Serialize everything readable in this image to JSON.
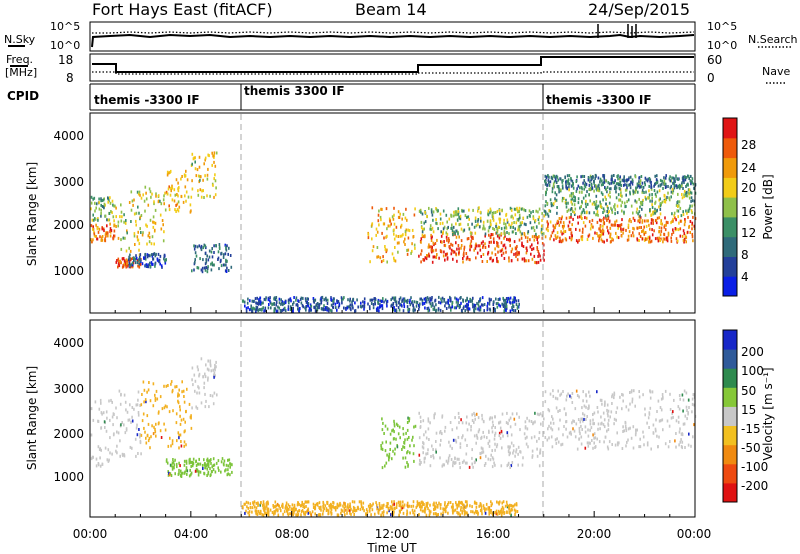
{
  "header": {
    "station": "Fort Hays East (fitACF)",
    "beam": "Beam 14",
    "date": "24/Sep/2015"
  },
  "time_axis": {
    "label": "Time UT",
    "ticks": [
      "00:00",
      "04:00",
      "08:00",
      "12:00",
      "16:00",
      "20:00",
      "00:00"
    ],
    "range_hours": [
      0,
      24
    ]
  },
  "noise_panel": {
    "left_label": "N.Sky",
    "right_label": "N.Search",
    "left_ticks": [
      "10^5",
      "10^0"
    ],
    "right_ticks": [
      "10^5",
      "10^0"
    ]
  },
  "freq_panel": {
    "left_label_1": "Freq.",
    "left_label_2": "[MHz]",
    "left_ticks": [
      "18",
      "8"
    ],
    "right_label": "Nave",
    "right_ticks": [
      "60",
      "0"
    ]
  },
  "cpid": {
    "label": "CPID",
    "segments": [
      {
        "start_h": 0,
        "end_h": 6,
        "text": "themis -3300 IF"
      },
      {
        "start_h": 6,
        "end_h": 18,
        "text": "themis 3300 IF"
      },
      {
        "start_h": 18,
        "end_h": 24,
        "text": "themis -3300 IF"
      }
    ]
  },
  "chart_data": [
    {
      "type": "heatmap",
      "title": "Power",
      "xlabel": "Time UT",
      "ylabel": "Slant Range [km]",
      "xlim": [
        0,
        24
      ],
      "ylim": [
        200,
        4500
      ],
      "yticks": [
        "1000",
        "2000",
        "3000",
        "4000"
      ],
      "colorbar": {
        "label": "Power [dB]",
        "ticks": [
          "28",
          "24",
          "20",
          "16",
          "12",
          "8",
          "4"
        ],
        "range": [
          0,
          30
        ],
        "colors": [
          "#0a1fe6",
          "#23409a",
          "#2f6a7a",
          "#3b8f66",
          "#8fc04a",
          "#f2cc18",
          "#f09a0a",
          "#ee5a0a",
          "#e01515"
        ]
      },
      "blobs": [
        {
          "t0": 0.0,
          "t1": 1.0,
          "r0": 1750,
          "r1": 2150,
          "power": 24
        },
        {
          "t0": 0.0,
          "t1": 1.0,
          "r0": 2200,
          "r1": 2750,
          "power": 14
        },
        {
          "t0": 1.0,
          "t1": 2.0,
          "r0": 1200,
          "r1": 1400,
          "power": 26
        },
        {
          "t0": 1.0,
          "t1": 2.0,
          "r0": 1450,
          "r1": 2900,
          "power": 16
        },
        {
          "t0": 2.0,
          "t1": 3.0,
          "r0": 1700,
          "r1": 3000,
          "power": 18
        },
        {
          "t0": 3.0,
          "t1": 4.0,
          "r0": 2400,
          "r1": 3300,
          "power": 20
        },
        {
          "t0": 4.0,
          "t1": 5.0,
          "r0": 2700,
          "r1": 3700,
          "power": 18
        },
        {
          "t0": 4.0,
          "t1": 5.6,
          "r0": 1100,
          "r1": 1700,
          "power": 8
        },
        {
          "t0": 1.5,
          "t1": 3.0,
          "r0": 1200,
          "r1": 1500,
          "power": 6
        },
        {
          "t0": 11.0,
          "t1": 12.9,
          "r0": 1300,
          "r1": 2500,
          "power": 20
        },
        {
          "t0": 13.0,
          "t1": 18.0,
          "r0": 1300,
          "r1": 1950,
          "power": 26
        },
        {
          "t0": 13.0,
          "t1": 18.0,
          "r0": 1900,
          "r1": 2500,
          "power": 14
        },
        {
          "t0": 18.0,
          "t1": 24.0,
          "r0": 1750,
          "r1": 2300,
          "power": 24
        },
        {
          "t0": 18.0,
          "t1": 24.0,
          "r0": 2300,
          "r1": 2900,
          "power": 14
        },
        {
          "t0": 18.0,
          "t1": 24.0,
          "r0": 2900,
          "r1": 3200,
          "power": 9
        },
        {
          "t0": 6.0,
          "t1": 17.0,
          "r0": 250,
          "r1": 550,
          "power": 6
        }
      ]
    },
    {
      "type": "heatmap",
      "title": "Velocity",
      "xlabel": "Time UT",
      "ylabel": "Slant Range [km]",
      "xlim": [
        0,
        24
      ],
      "ylim": [
        200,
        4500
      ],
      "yticks": [
        "1000",
        "2000",
        "3000",
        "4000"
      ],
      "colorbar": {
        "label": "Velocity [m s⁻¹]",
        "ticks": [
          "200",
          "100",
          "50",
          "15",
          "-15",
          "-50",
          "-100",
          "-200"
        ],
        "colors": [
          "#1727c8",
          "#2f5a9a",
          "#2e8a4e",
          "#86c838",
          "#c8c8c8",
          "#f2c020",
          "#f08a10",
          "#ee4a10",
          "#e01212"
        ]
      },
      "blobs": [
        {
          "t0": 0.0,
          "t1": 1.0,
          "r0": 1300,
          "r1": 2800,
          "vel": "gray"
        },
        {
          "t0": 1.0,
          "t1": 2.0,
          "r0": 1500,
          "r1": 3000,
          "vel": "gray"
        },
        {
          "t0": 2.0,
          "t1": 4.0,
          "r0": 1700,
          "r1": 3200,
          "vel": "orange"
        },
        {
          "t0": 4.0,
          "t1": 5.0,
          "r0": 2600,
          "r1": 3700,
          "vel": "gray"
        },
        {
          "t0": 3.0,
          "t1": 5.6,
          "r0": 1100,
          "r1": 1500,
          "vel": "green"
        },
        {
          "t0": 11.5,
          "t1": 12.9,
          "r0": 1300,
          "r1": 2400,
          "vel": "green"
        },
        {
          "t0": 13.0,
          "t1": 18.0,
          "r0": 1300,
          "r1": 2500,
          "vel": "gray"
        },
        {
          "t0": 18.0,
          "t1": 24.0,
          "r0": 1700,
          "r1": 3000,
          "vel": "gray"
        },
        {
          "t0": 6.0,
          "t1": 17.0,
          "r0": 250,
          "r1": 550,
          "vel": "orange"
        }
      ]
    }
  ]
}
